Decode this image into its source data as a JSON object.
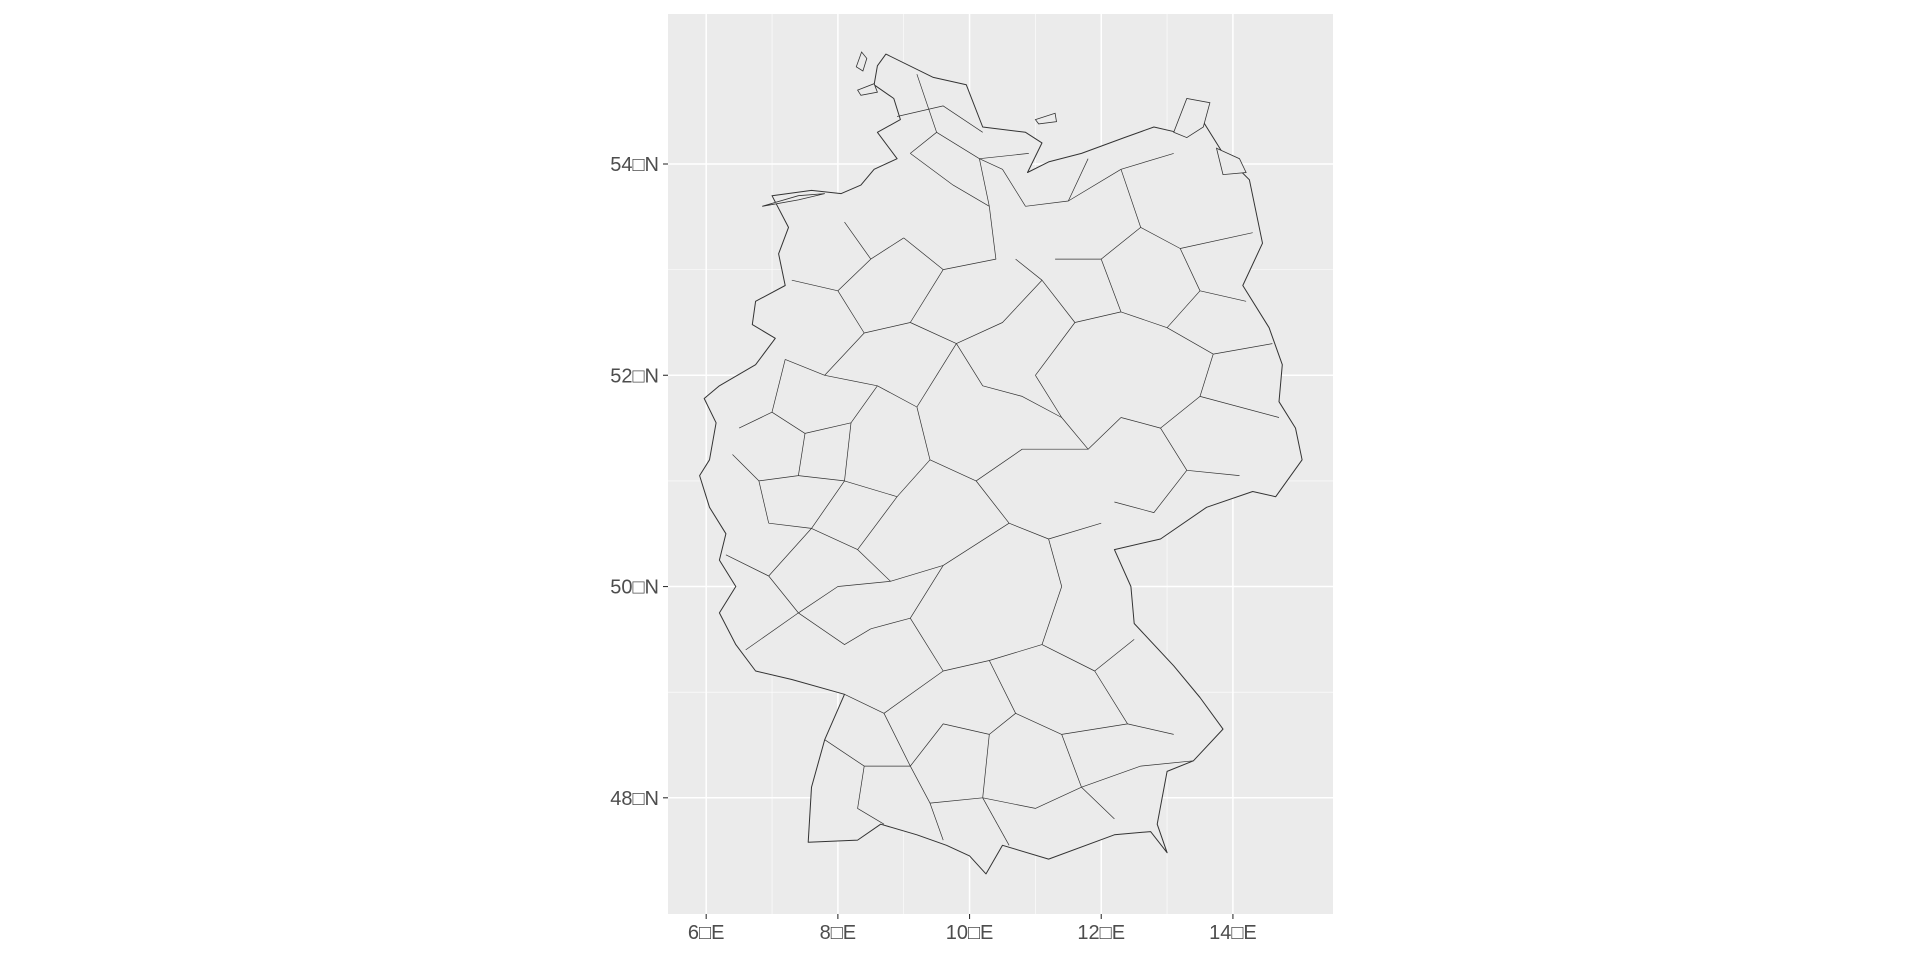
{
  "map": {
    "type": "map",
    "title": "",
    "subtitle": "",
    "xlabel": "",
    "ylabel": "",
    "xlim": [
      5.42,
      15.52
    ],
    "ylim": [
      46.9,
      55.42
    ],
    "grid": true,
    "x_ticks": [
      {
        "value": 6,
        "label": "6□E"
      },
      {
        "value": 8,
        "label": "8□E"
      },
      {
        "value": 10,
        "label": "10□E"
      },
      {
        "value": 12,
        "label": "12□E"
      },
      {
        "value": 14,
        "label": "14□E"
      }
    ],
    "y_ticks": [
      {
        "value": 48,
        "label": "48□N"
      },
      {
        "value": 50,
        "label": "50□N"
      },
      {
        "value": 52,
        "label": "52□N"
      },
      {
        "value": 54,
        "label": "54□N"
      }
    ],
    "colors": {
      "panel_background": "#ebebeb",
      "grid_major": "#ffffff",
      "region_fill": "#ebebeb",
      "region_stroke": "#333333",
      "tick_label": "#4d4d4d",
      "tick_mark": "#333333"
    },
    "region": "Germany (Landkreise / districts)",
    "outline": [
      [
        8.73,
        55.04
      ],
      [
        8.6,
        54.93
      ],
      [
        8.55,
        54.75
      ],
      [
        8.85,
        54.62
      ],
      [
        8.95,
        54.42
      ],
      [
        8.6,
        54.3
      ],
      [
        8.9,
        54.05
      ],
      [
        8.55,
        53.95
      ],
      [
        8.35,
        53.8
      ],
      [
        8.05,
        53.72
      ],
      [
        7.6,
        53.75
      ],
      [
        7.0,
        53.7
      ],
      [
        7.25,
        53.4
      ],
      [
        7.1,
        53.15
      ],
      [
        7.2,
        52.85
      ],
      [
        6.75,
        52.7
      ],
      [
        6.7,
        52.48
      ],
      [
        7.05,
        52.35
      ],
      [
        6.75,
        52.1
      ],
      [
        6.2,
        51.9
      ],
      [
        5.97,
        51.78
      ],
      [
        6.15,
        51.55
      ],
      [
        6.05,
        51.2
      ],
      [
        5.9,
        51.05
      ],
      [
        6.05,
        50.75
      ],
      [
        6.3,
        50.5
      ],
      [
        6.2,
        50.25
      ],
      [
        6.45,
        50.0
      ],
      [
        6.2,
        49.75
      ],
      [
        6.45,
        49.45
      ],
      [
        6.75,
        49.2
      ],
      [
        7.3,
        49.12
      ],
      [
        8.1,
        48.98
      ],
      [
        7.8,
        48.55
      ],
      [
        7.6,
        48.1
      ],
      [
        7.55,
        47.58
      ],
      [
        8.3,
        47.6
      ],
      [
        8.65,
        47.75
      ],
      [
        9.2,
        47.65
      ],
      [
        9.65,
        47.55
      ],
      [
        10.0,
        47.45
      ],
      [
        10.25,
        47.28
      ],
      [
        10.5,
        47.55
      ],
      [
        11.2,
        47.42
      ],
      [
        12.2,
        47.65
      ],
      [
        12.75,
        47.68
      ],
      [
        13.0,
        47.48
      ],
      [
        12.85,
        47.75
      ],
      [
        13.0,
        48.25
      ],
      [
        13.4,
        48.35
      ],
      [
        13.85,
        48.65
      ],
      [
        13.5,
        48.95
      ],
      [
        13.1,
        49.25
      ],
      [
        12.5,
        49.65
      ],
      [
        12.45,
        50.0
      ],
      [
        12.2,
        50.35
      ],
      [
        12.9,
        50.45
      ],
      [
        13.6,
        50.75
      ],
      [
        14.3,
        50.9
      ],
      [
        14.65,
        50.85
      ],
      [
        15.05,
        51.2
      ],
      [
        14.95,
        51.5
      ],
      [
        14.7,
        51.75
      ],
      [
        14.75,
        52.1
      ],
      [
        14.55,
        52.45
      ],
      [
        14.15,
        52.85
      ],
      [
        14.45,
        53.25
      ],
      [
        14.25,
        53.85
      ],
      [
        13.85,
        54.1
      ],
      [
        13.45,
        54.5
      ],
      [
        13.15,
        54.3
      ],
      [
        12.8,
        54.35
      ],
      [
        12.35,
        54.25
      ],
      [
        11.7,
        54.1
      ],
      [
        11.2,
        54.02
      ],
      [
        10.88,
        53.92
      ],
      [
        11.1,
        54.2
      ],
      [
        10.85,
        54.3
      ],
      [
        10.2,
        54.35
      ],
      [
        9.95,
        54.75
      ],
      [
        9.45,
        54.82
      ],
      [
        8.73,
        55.04
      ]
    ],
    "islands": [
      [
        [
          8.28,
          54.92
        ],
        [
          8.36,
          55.06
        ],
        [
          8.44,
          55.0
        ],
        [
          8.38,
          54.88
        ],
        [
          8.28,
          54.92
        ]
      ],
      [
        [
          8.3,
          54.7
        ],
        [
          8.55,
          54.76
        ],
        [
          8.6,
          54.68
        ],
        [
          8.35,
          54.65
        ],
        [
          8.3,
          54.7
        ]
      ],
      [
        [
          11.0,
          54.42
        ],
        [
          11.3,
          54.48
        ],
        [
          11.32,
          54.4
        ],
        [
          11.05,
          54.38
        ],
        [
          11.0,
          54.42
        ]
      ],
      [
        [
          13.1,
          54.3
        ],
        [
          13.3,
          54.62
        ],
        [
          13.65,
          54.58
        ],
        [
          13.55,
          54.35
        ],
        [
          13.3,
          54.25
        ],
        [
          13.1,
          54.3
        ]
      ],
      [
        [
          13.75,
          54.15
        ],
        [
          14.1,
          54.05
        ],
        [
          14.2,
          53.92
        ],
        [
          13.85,
          53.9
        ],
        [
          13.75,
          54.15
        ]
      ],
      [
        [
          6.85,
          53.6
        ],
        [
          7.4,
          53.7
        ],
        [
          7.8,
          53.72
        ],
        [
          7.4,
          53.66
        ],
        [
          6.85,
          53.6
        ]
      ]
    ],
    "districts": [
      [
        [
          9.2,
          54.85
        ],
        [
          9.5,
          54.3
        ],
        [
          9.1,
          54.1
        ]
      ],
      [
        [
          8.9,
          54.45
        ],
        [
          9.6,
          54.55
        ],
        [
          10.2,
          54.3
        ]
      ],
      [
        [
          9.5,
          54.3
        ],
        [
          10.15,
          54.05
        ],
        [
          10.9,
          54.1
        ]
      ],
      [
        [
          9.1,
          54.1
        ],
        [
          9.75,
          53.8
        ],
        [
          10.3,
          53.6
        ]
      ],
      [
        [
          10.3,
          53.6
        ],
        [
          10.15,
          54.05
        ],
        [
          10.5,
          53.95
        ],
        [
          10.85,
          53.6
        ]
      ],
      [
        [
          10.85,
          53.6
        ],
        [
          11.5,
          53.65
        ],
        [
          11.8,
          54.05
        ]
      ],
      [
        [
          11.5,
          53.65
        ],
        [
          12.3,
          53.95
        ],
        [
          13.1,
          54.1
        ]
      ],
      [
        [
          12.3,
          53.95
        ],
        [
          12.6,
          53.4
        ],
        [
          13.2,
          53.2
        ],
        [
          14.3,
          53.35
        ]
      ],
      [
        [
          12.6,
          53.4
        ],
        [
          12.0,
          53.1
        ],
        [
          11.3,
          53.1
        ]
      ],
      [
        [
          13.2,
          53.2
        ],
        [
          13.5,
          52.8
        ],
        [
          14.2,
          52.7
        ]
      ],
      [
        [
          12.0,
          53.1
        ],
        [
          12.3,
          52.6
        ],
        [
          13.0,
          52.45
        ],
        [
          13.5,
          52.8
        ]
      ],
      [
        [
          13.0,
          52.45
        ],
        [
          13.7,
          52.2
        ],
        [
          14.6,
          52.3
        ]
      ],
      [
        [
          13.7,
          52.2
        ],
        [
          13.5,
          51.8
        ],
        [
          14.7,
          51.6
        ]
      ],
      [
        [
          13.5,
          51.8
        ],
        [
          12.9,
          51.5
        ],
        [
          12.3,
          51.6
        ]
      ],
      [
        [
          12.9,
          51.5
        ],
        [
          13.3,
          51.1
        ],
        [
          14.1,
          51.05
        ]
      ],
      [
        [
          13.3,
          51.1
        ],
        [
          12.8,
          50.7
        ],
        [
          12.2,
          50.8
        ]
      ],
      [
        [
          12.3,
          51.6
        ],
        [
          11.8,
          51.3
        ],
        [
          11.4,
          51.6
        ],
        [
          11.0,
          52.0
        ]
      ],
      [
        [
          11.0,
          52.0
        ],
        [
          11.6,
          52.5
        ],
        [
          12.3,
          52.6
        ]
      ],
      [
        [
          11.6,
          52.5
        ],
        [
          11.1,
          52.9
        ],
        [
          10.7,
          53.1
        ]
      ],
      [
        [
          10.3,
          53.6
        ],
        [
          10.4,
          53.1
        ],
        [
          9.6,
          53.0
        ],
        [
          9.0,
          53.3
        ]
      ],
      [
        [
          9.0,
          53.3
        ],
        [
          8.5,
          53.1
        ],
        [
          8.1,
          53.45
        ]
      ],
      [
        [
          8.5,
          53.1
        ],
        [
          8.0,
          52.8
        ],
        [
          7.3,
          52.9
        ]
      ],
      [
        [
          8.0,
          52.8
        ],
        [
          8.4,
          52.4
        ],
        [
          9.1,
          52.5
        ]
      ],
      [
        [
          9.1,
          52.5
        ],
        [
          9.6,
          53.0
        ]
      ],
      [
        [
          9.1,
          52.5
        ],
        [
          9.8,
          52.3
        ],
        [
          10.5,
          52.5
        ],
        [
          11.1,
          52.9
        ]
      ],
      [
        [
          9.8,
          52.3
        ],
        [
          10.2,
          51.9
        ],
        [
          10.8,
          51.8
        ],
        [
          11.4,
          51.6
        ]
      ],
      [
        [
          8.4,
          52.4
        ],
        [
          7.8,
          52.0
        ],
        [
          7.2,
          52.15
        ]
      ],
      [
        [
          7.8,
          52.0
        ],
        [
          8.6,
          51.9
        ],
        [
          9.2,
          51.7
        ]
      ],
      [
        [
          9.2,
          51.7
        ],
        [
          9.8,
          52.3
        ]
      ],
      [
        [
          9.2,
          51.7
        ],
        [
          9.4,
          51.2
        ],
        [
          10.1,
          51.0
        ]
      ],
      [
        [
          10.1,
          51.0
        ],
        [
          10.6,
          50.6
        ],
        [
          11.2,
          50.45
        ],
        [
          12.0,
          50.6
        ]
      ],
      [
        [
          10.1,
          51.0
        ],
        [
          10.8,
          51.3
        ],
        [
          11.8,
          51.3
        ]
      ],
      [
        [
          7.2,
          52.15
        ],
        [
          7.0,
          51.65
        ],
        [
          6.5,
          51.5
        ]
      ],
      [
        [
          7.0,
          51.65
        ],
        [
          7.5,
          51.45
        ],
        [
          8.2,
          51.55
        ],
        [
          8.6,
          51.9
        ]
      ],
      [
        [
          7.5,
          51.45
        ],
        [
          7.4,
          51.05
        ],
        [
          6.8,
          51.0
        ]
      ],
      [
        [
          6.4,
          51.25
        ],
        [
          6.8,
          51.0
        ],
        [
          6.95,
          50.6
        ]
      ],
      [
        [
          8.2,
          51.55
        ],
        [
          8.1,
          51.0
        ],
        [
          7.4,
          51.05
        ]
      ],
      [
        [
          8.1,
          51.0
        ],
        [
          8.9,
          50.85
        ],
        [
          9.4,
          51.2
        ]
      ],
      [
        [
          6.95,
          50.6
        ],
        [
          7.6,
          50.55
        ],
        [
          8.1,
          51.0
        ]
      ],
      [
        [
          7.6,
          50.55
        ],
        [
          8.3,
          50.35
        ],
        [
          8.9,
          50.85
        ]
      ],
      [
        [
          8.3,
          50.35
        ],
        [
          8.8,
          50.05
        ],
        [
          9.6,
          50.2
        ],
        [
          10.6,
          50.6
        ]
      ],
      [
        [
          6.3,
          50.3
        ],
        [
          6.95,
          50.1
        ],
        [
          7.6,
          50.55
        ]
      ],
      [
        [
          6.95,
          50.1
        ],
        [
          7.4,
          49.75
        ],
        [
          8.0,
          50.0
        ],
        [
          8.8,
          50.05
        ]
      ],
      [
        [
          6.6,
          49.4
        ],
        [
          7.4,
          49.75
        ]
      ],
      [
        [
          7.4,
          49.75
        ],
        [
          8.1,
          49.45
        ],
        [
          8.5,
          49.6
        ]
      ],
      [
        [
          8.5,
          49.6
        ],
        [
          9.1,
          49.7
        ],
        [
          9.6,
          50.2
        ]
      ],
      [
        [
          9.1,
          49.7
        ],
        [
          9.6,
          49.2
        ],
        [
          10.3,
          49.3
        ],
        [
          11.1,
          49.45
        ]
      ],
      [
        [
          11.1,
          49.45
        ],
        [
          11.4,
          50.0
        ],
        [
          11.2,
          50.45
        ]
      ],
      [
        [
          11.1,
          49.45
        ],
        [
          11.9,
          49.2
        ],
        [
          12.5,
          49.5
        ]
      ],
      [
        [
          11.9,
          49.2
        ],
        [
          12.4,
          48.7
        ],
        [
          13.1,
          48.6
        ]
      ],
      [
        [
          10.3,
          49.3
        ],
        [
          10.7,
          48.8
        ],
        [
          11.4,
          48.6
        ],
        [
          12.4,
          48.7
        ]
      ],
      [
        [
          8.1,
          48.98
        ],
        [
          8.7,
          48.8
        ],
        [
          9.6,
          49.2
        ]
      ],
      [
        [
          8.7,
          48.8
        ],
        [
          9.1,
          48.3
        ],
        [
          9.6,
          48.7
        ],
        [
          10.3,
          48.6
        ],
        [
          10.7,
          48.8
        ]
      ],
      [
        [
          7.8,
          48.55
        ],
        [
          8.4,
          48.3
        ],
        [
          9.1,
          48.3
        ]
      ],
      [
        [
          8.4,
          48.3
        ],
        [
          8.3,
          47.9
        ],
        [
          8.7,
          47.75
        ]
      ],
      [
        [
          9.1,
          48.3
        ],
        [
          9.4,
          47.95
        ],
        [
          9.6,
          47.6
        ]
      ],
      [
        [
          9.4,
          47.95
        ],
        [
          10.2,
          48.0
        ],
        [
          10.3,
          48.6
        ]
      ],
      [
        [
          10.2,
          48.0
        ],
        [
          10.6,
          47.55
        ]
      ],
      [
        [
          11.4,
          48.6
        ],
        [
          11.7,
          48.1
        ],
        [
          12.2,
          47.8
        ]
      ],
      [
        [
          10.2,
          48.0
        ],
        [
          11.0,
          47.9
        ],
        [
          11.7,
          48.1
        ]
      ],
      [
        [
          11.7,
          48.1
        ],
        [
          12.6,
          48.3
        ],
        [
          13.4,
          48.35
        ]
      ]
    ]
  }
}
